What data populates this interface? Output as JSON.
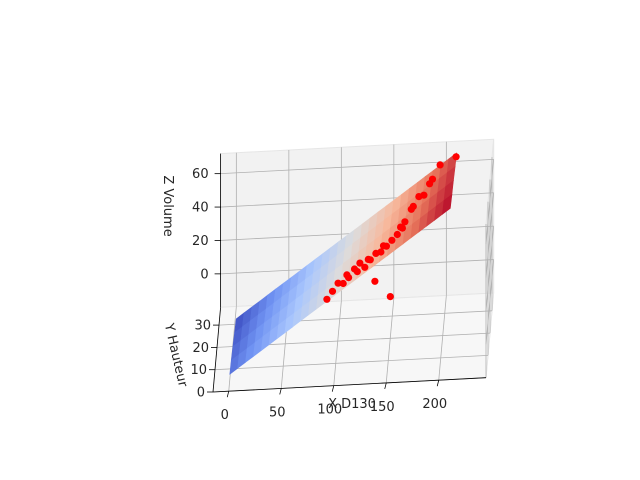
{
  "chart_data": {
    "type": "scatter",
    "subtype": "3d-scatter-with-regression-plane",
    "title": "",
    "xlabel": "X D130",
    "ylabel": "Y Hauteur",
    "zlabel": "Z Volume",
    "x_ticks": [
      "0",
      "50",
      "100",
      "150",
      "200"
    ],
    "y_ticks": [
      "0",
      "10",
      "20",
      "30"
    ],
    "z_ticks": [
      "0",
      "20",
      "40",
      "60"
    ],
    "xlim": [
      -15,
      245
    ],
    "ylim": [
      0,
      38
    ],
    "zlim": [
      -20,
      72
    ],
    "grid": true,
    "point_color": "#ff0000",
    "surface_colormap": "coolwarm",
    "surface_colors": [
      "#3b4cc0",
      "#7093f3",
      "#aac7fd",
      "#dddcdc",
      "#f7b89c",
      "#e7745b",
      "#b40426"
    ],
    "points": [
      {
        "x": 90,
        "y": 18,
        "z": 8
      },
      {
        "x": 95,
        "y": 20,
        "z": 10
      },
      {
        "x": 100,
        "y": 22,
        "z": 12
      },
      {
        "x": 105,
        "y": 21,
        "z": 13
      },
      {
        "x": 108,
        "y": 24,
        "z": 14
      },
      {
        "x": 110,
        "y": 22,
        "z": 15
      },
      {
        "x": 115,
        "y": 25,
        "z": 16
      },
      {
        "x": 118,
        "y": 23,
        "z": 17
      },
      {
        "x": 120,
        "y": 26,
        "z": 18
      },
      {
        "x": 125,
        "y": 24,
        "z": 18
      },
      {
        "x": 128,
        "y": 26,
        "z": 20
      },
      {
        "x": 130,
        "y": 25,
        "z": 21
      },
      {
        "x": 135,
        "y": 27,
        "z": 22
      },
      {
        "x": 140,
        "y": 26,
        "z": 24
      },
      {
        "x": 142,
        "y": 28,
        "z": 25
      },
      {
        "x": 145,
        "y": 27,
        "z": 26
      },
      {
        "x": 150,
        "y": 28,
        "z": 28
      },
      {
        "x": 155,
        "y": 29,
        "z": 30
      },
      {
        "x": 158,
        "y": 30,
        "z": 33
      },
      {
        "x": 160,
        "y": 28,
        "z": 35
      },
      {
        "x": 162,
        "y": 30,
        "z": 36
      },
      {
        "x": 168,
        "y": 31,
        "z": 42
      },
      {
        "x": 170,
        "y": 30,
        "z": 45
      },
      {
        "x": 175,
        "y": 32,
        "z": 48
      },
      {
        "x": 180,
        "y": 31,
        "z": 50
      },
      {
        "x": 185,
        "y": 33,
        "z": 54
      },
      {
        "x": 188,
        "y": 32,
        "z": 58
      },
      {
        "x": 195,
        "y": 33,
        "z": 65
      },
      {
        "x": 210,
        "y": 34,
        "z": 68
      },
      {
        "x": 150,
        "y": 20,
        "z": 5
      },
      {
        "x": 135,
        "y": 22,
        "z": 12
      }
    ]
  }
}
